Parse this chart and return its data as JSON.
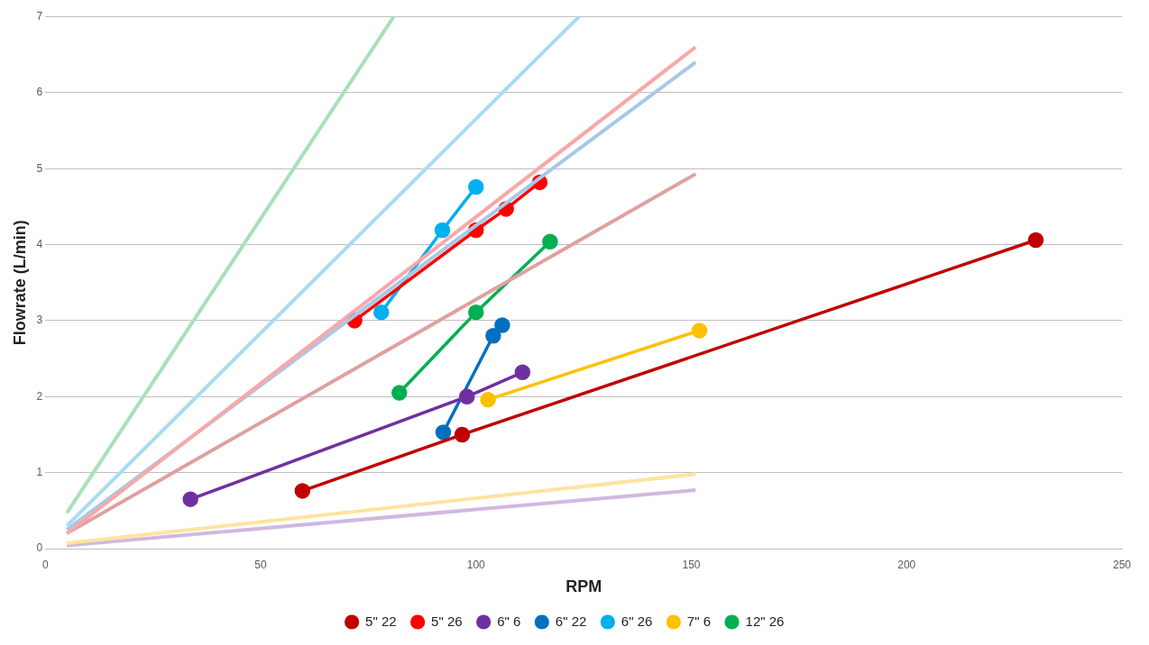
{
  "chart_data": {
    "type": "line",
    "xlabel": "RPM",
    "ylabel": "Flowrate (L/min)",
    "xlim": [
      0,
      250
    ],
    "xticks": [
      0,
      50,
      100,
      150,
      200,
      250
    ],
    "ylim": [
      0,
      7
    ],
    "yticks": [
      0,
      1,
      2,
      3,
      4,
      5,
      6,
      7
    ],
    "grid": "y",
    "legend": "bottom",
    "marker": "circle",
    "line_style": "solid",
    "series": [
      {
        "color": "#a8e0b8",
        "marker": "none",
        "x": [
          5,
          80.9
        ],
        "values": [
          0.47,
          7
        ]
      },
      {
        "color": "#a8dcf4",
        "marker": "none",
        "x": [
          5,
          123.9
        ],
        "values": [
          0.3,
          7
        ]
      },
      {
        "color": "#f8a8a8",
        "marker": "none",
        "x": [
          5,
          151
        ],
        "values": [
          0.2,
          6.6
        ]
      },
      {
        "color": "#a8c8e8",
        "marker": "none",
        "x": [
          5,
          151
        ],
        "values": [
          0.25,
          6.4
        ]
      },
      {
        "color": "#e0a0a0",
        "marker": "none",
        "x": [
          5,
          151
        ],
        "values": [
          0.2,
          4.93
        ]
      },
      {
        "color": "#ffe4a0",
        "marker": "none",
        "x": [
          5,
          151
        ],
        "values": [
          0.07,
          0.98
        ]
      },
      {
        "color": "#d0b8e0",
        "marker": "none",
        "x": [
          5,
          151
        ],
        "values": [
          0.04,
          0.77
        ]
      },
      {
        "name": "5\" 22",
        "color": "#c00000",
        "x": [
          59.7,
          96.8,
          230
        ],
        "values": [
          0.76,
          1.5,
          4.06
        ]
      },
      {
        "name": "5\" 26",
        "color": "#ff0000",
        "x": [
          71.8,
          100,
          107,
          114.8
        ],
        "values": [
          3.0,
          4.19,
          4.47,
          4.82
        ]
      },
      {
        "name": "6\" 6",
        "color": "#7030a0",
        "x": [
          33.7,
          97.9,
          110.8
        ],
        "values": [
          0.65,
          2.0,
          2.32
        ]
      },
      {
        "name": "6\" 22",
        "color": "#0070c0",
        "x": [
          92.4,
          104,
          106.1
        ],
        "values": [
          1.53,
          2.8,
          2.94
        ]
      },
      {
        "name": "6\" 26",
        "color": "#00b0f0",
        "x": [
          78,
          92.2,
          100
        ],
        "values": [
          3.11,
          4.19,
          4.76
        ]
      },
      {
        "name": "7\" 6",
        "color": "#ffc000",
        "x": [
          102.8,
          151.9
        ],
        "values": [
          1.96,
          2.87
        ]
      },
      {
        "name": "12\" 26",
        "color": "#00b050",
        "x": [
          82.2,
          100,
          117.2
        ],
        "values": [
          2.05,
          3.11,
          4.04
        ]
      }
    ]
  }
}
